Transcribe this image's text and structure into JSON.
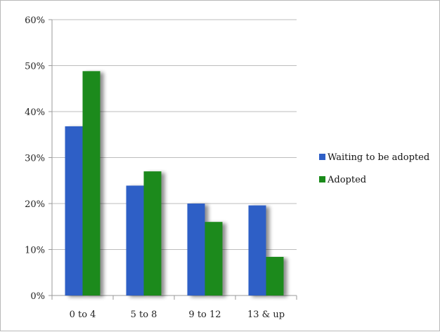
{
  "chart_data": {
    "type": "bar",
    "categories": [
      "0 to 4",
      "5 to 8",
      "9 to 12",
      "13 & up"
    ],
    "series": [
      {
        "name": "Waiting to be adopted",
        "values": [
          36.8,
          23.9,
          20.0,
          19.6
        ],
        "color": "#2e5fc6"
      },
      {
        "name": "Adopted",
        "values": [
          48.8,
          27.0,
          16.0,
          8.4
        ],
        "color": "#1a8a1a"
      }
    ],
    "y_ticks": [
      "0%",
      "10%",
      "20%",
      "30%",
      "40%",
      "50%",
      "60%"
    ],
    "ylim": [
      0,
      60
    ],
    "grid": true,
    "legend_position": "right",
    "title": "",
    "xlabel": "",
    "ylabel": ""
  }
}
